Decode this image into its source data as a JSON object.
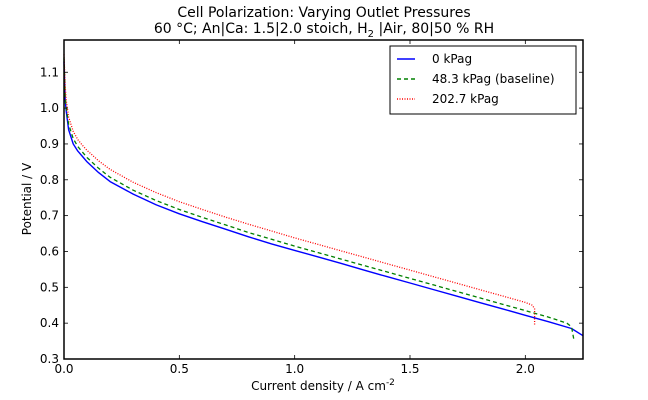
{
  "chart_data": {
    "type": "line",
    "title": "Cell Polarization: Varying Outlet Pressures",
    "subtitle_parts": {
      "prefix": "60  °C; An|Ca: 1.5|2.0 stoich, H",
      "sub": "2",
      "suffix": " |Air, 80|50 % RH"
    },
    "xlabel": "Current density / A cm",
    "xlabel_sup": "-2",
    "ylabel": "Potential / V",
    "xlim": [
      0.0,
      2.25
    ],
    "ylim": [
      0.3,
      1.19
    ],
    "xticks": [
      0.0,
      0.5,
      1.0,
      1.5,
      2.0
    ],
    "xtick_labels": [
      "0.0",
      "0.5",
      "1.0",
      "1.5",
      "2.0"
    ],
    "yticks": [
      0.3,
      0.4,
      0.5,
      0.6,
      0.7,
      0.8,
      0.9,
      1.0,
      1.1
    ],
    "ytick_labels": [
      "0.3",
      "0.4",
      "0.5",
      "0.6",
      "0.7",
      "0.8",
      "0.9",
      "1.0",
      "1.1"
    ],
    "grid": false,
    "legend_position": "top-right",
    "series": [
      {
        "name": "0 kPag",
        "color": "#0000ff",
        "style": "solid",
        "x": [
          0.0,
          0.005,
          0.01,
          0.02,
          0.04,
          0.06,
          0.08,
          0.1,
          0.15,
          0.2,
          0.3,
          0.4,
          0.5,
          0.6,
          0.7,
          0.8,
          0.9,
          1.0,
          1.1,
          1.2,
          1.3,
          1.4,
          1.5,
          1.6,
          1.7,
          1.8,
          1.9,
          2.0,
          2.1,
          2.2,
          2.25
        ],
        "y": [
          1.13,
          1.02,
          0.99,
          0.94,
          0.9,
          0.88,
          0.865,
          0.85,
          0.82,
          0.795,
          0.76,
          0.73,
          0.705,
          0.683,
          0.662,
          0.641,
          0.621,
          0.603,
          0.585,
          0.567,
          0.548,
          0.53,
          0.512,
          0.494,
          0.476,
          0.458,
          0.44,
          0.422,
          0.404,
          0.385,
          0.365
        ]
      },
      {
        "name": "48.3 kPag (baseline)",
        "color": "#008000",
        "style": "dashed",
        "x": [
          0.0,
          0.005,
          0.01,
          0.02,
          0.04,
          0.06,
          0.08,
          0.1,
          0.15,
          0.2,
          0.3,
          0.4,
          0.5,
          0.6,
          0.7,
          0.8,
          0.9,
          1.0,
          1.1,
          1.2,
          1.3,
          1.4,
          1.5,
          1.6,
          1.7,
          1.8,
          1.9,
          2.0,
          2.1,
          2.18,
          2.2,
          2.21
        ],
        "y": [
          1.14,
          1.03,
          1.0,
          0.955,
          0.915,
          0.893,
          0.877,
          0.862,
          0.832,
          0.807,
          0.771,
          0.742,
          0.717,
          0.695,
          0.674,
          0.653,
          0.634,
          0.615,
          0.597,
          0.579,
          0.561,
          0.543,
          0.525,
          0.507,
          0.489,
          0.471,
          0.453,
          0.435,
          0.417,
          0.4,
          0.39,
          0.355
        ]
      },
      {
        "name": "202.7 kPag",
        "color": "#ff0000",
        "style": "dotted",
        "x": [
          0.0,
          0.005,
          0.01,
          0.02,
          0.04,
          0.06,
          0.08,
          0.1,
          0.15,
          0.2,
          0.3,
          0.4,
          0.5,
          0.6,
          0.7,
          0.8,
          0.9,
          1.0,
          1.1,
          1.2,
          1.3,
          1.4,
          1.5,
          1.6,
          1.7,
          1.8,
          1.9,
          2.0,
          2.03,
          2.04,
          2.04
        ],
        "y": [
          1.15,
          1.06,
          1.02,
          0.975,
          0.935,
          0.912,
          0.896,
          0.882,
          0.853,
          0.829,
          0.793,
          0.764,
          0.739,
          0.717,
          0.696,
          0.676,
          0.657,
          0.638,
          0.62,
          0.602,
          0.584,
          0.566,
          0.548,
          0.53,
          0.512,
          0.494,
          0.476,
          0.458,
          0.45,
          0.44,
          0.395
        ]
      }
    ]
  }
}
